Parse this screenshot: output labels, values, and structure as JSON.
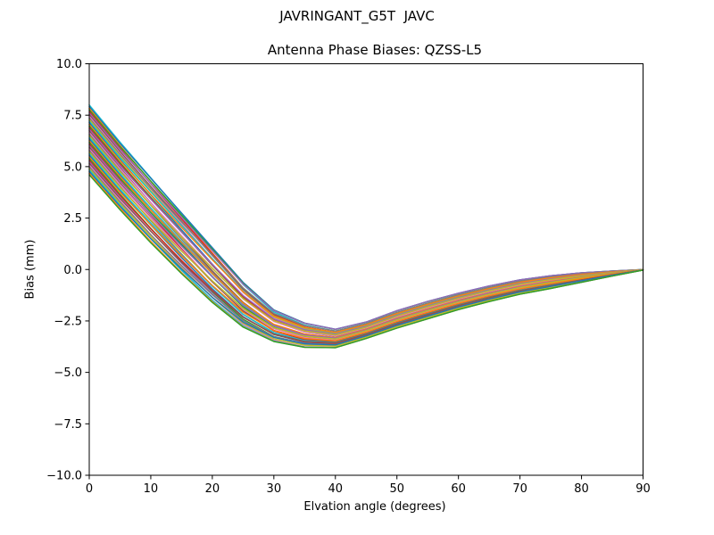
{
  "chart_data": {
    "type": "line",
    "title": "JAVRINGANT_G5T  JAVC",
    "subtitle": "Antenna Phase Biases: QZSS-L5",
    "xlabel": "Elvation angle (degrees)",
    "ylabel": "Bias (mm)",
    "xlim": [
      0,
      90
    ],
    "ylim": [
      -10.0,
      10.0
    ],
    "x_ticks": [
      0,
      10,
      20,
      30,
      40,
      50,
      60,
      70,
      80,
      90
    ],
    "y_ticks": [
      10.0,
      7.5,
      5.0,
      2.5,
      0.0,
      -2.5,
      -5.0,
      -7.5,
      -10.0
    ],
    "grid": false,
    "legend": "none",
    "series_model": "bundle of curves interpolated between top and bottom envelopes",
    "x": [
      0,
      5,
      10,
      15,
      20,
      25,
      30,
      35,
      40,
      45,
      50,
      55,
      60,
      65,
      70,
      75,
      80,
      85,
      90
    ],
    "envelope_top": [
      8.0,
      6.2,
      4.5,
      2.8,
      1.1,
      -0.6,
      -1.95,
      -2.6,
      -2.9,
      -2.55,
      -2.0,
      -1.55,
      -1.15,
      -0.8,
      -0.5,
      -0.3,
      -0.16,
      -0.07,
      0.0
    ],
    "envelope_bottom": [
      4.6,
      2.9,
      1.3,
      -0.2,
      -1.6,
      -2.8,
      -3.5,
      -3.78,
      -3.8,
      -3.35,
      -2.85,
      -2.4,
      -1.95,
      -1.56,
      -1.2,
      -0.92,
      -0.62,
      -0.32,
      -0.03
    ],
    "n_curves": 44,
    "curve_fractions_start": [
      0.0,
      0.023,
      0.047,
      0.07,
      0.093,
      0.116,
      0.14,
      0.163,
      0.186,
      0.209,
      0.233,
      0.256,
      0.279,
      0.302,
      0.326,
      0.349,
      0.372,
      0.395,
      0.419,
      0.442,
      0.465,
      0.488,
      0.512,
      0.535,
      0.558,
      0.581,
      0.605,
      0.628,
      0.651,
      0.674,
      0.698,
      0.721,
      0.744,
      0.767,
      0.791,
      0.814,
      0.837,
      0.86,
      0.884,
      0.907,
      0.93,
      0.953,
      0.977,
      1.0
    ],
    "curve_fractions_end": [
      0.1,
      0.0,
      0.197,
      0.01,
      0.173,
      0.0,
      0.18,
      0.283,
      0.096,
      0.229,
      0.183,
      0.386,
      0.169,
      0.372,
      0.326,
      0.269,
      0.512,
      0.365,
      0.509,
      0.312,
      0.515,
      0.598,
      0.442,
      0.555,
      0.708,
      0.481,
      0.665,
      0.588,
      0.771,
      0.524,
      0.728,
      0.801,
      0.624,
      0.867,
      0.771,
      0.884,
      0.747,
      0.99,
      0.834,
      0.917,
      1.0,
      0.843,
      1.0,
      1.0
    ],
    "palette": [
      "#1f77b4",
      "#ff7f0e",
      "#2ca02c",
      "#d62728",
      "#9467bd",
      "#8c564b",
      "#e377c2",
      "#7f7f7f",
      "#bcbd22",
      "#17becf"
    ],
    "palette_offset": 9,
    "axis_color": "#000000",
    "background_color": "#ffffff"
  }
}
